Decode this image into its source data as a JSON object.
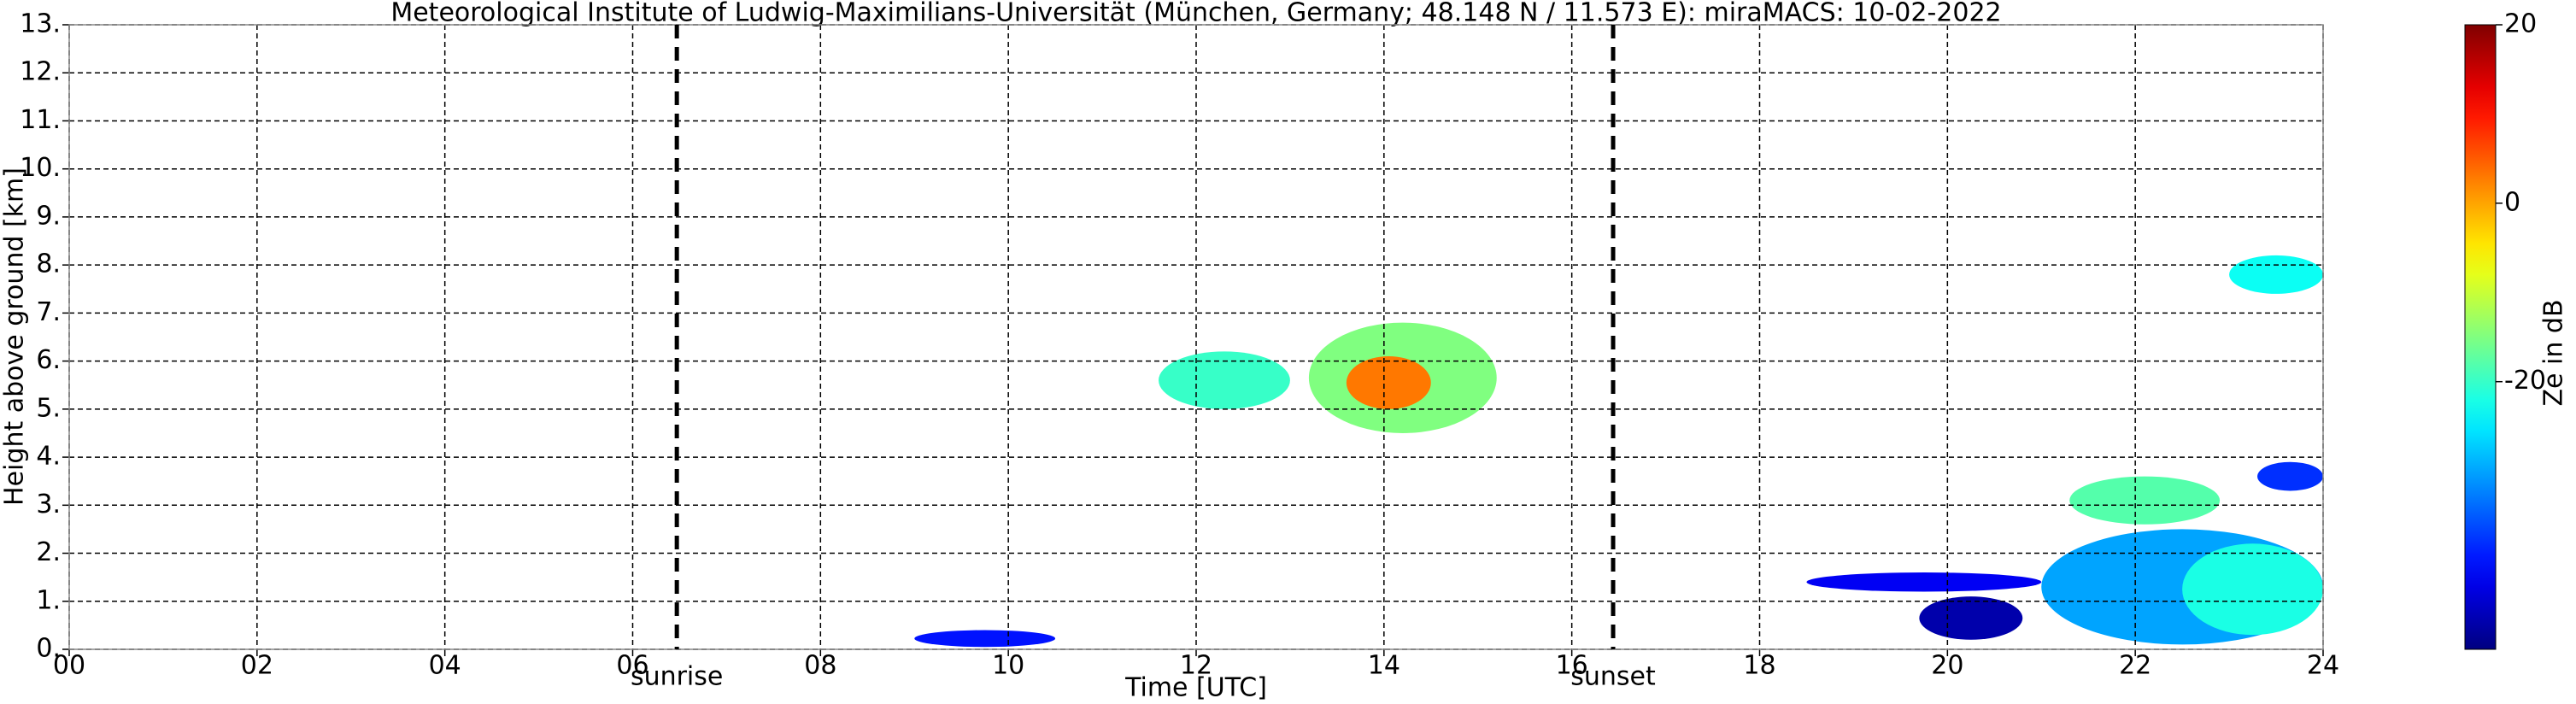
{
  "chart_data": {
    "type": "heatmap",
    "title": "Meteorological Institute of Ludwig-Maximilians-Universität (München, Germany; 48.148 N / 11.573 E):    miraMACS: 10-02-2022",
    "xlabel": "Time [UTC]",
    "ylabel": "Height above ground [km]",
    "colorbar_label": "Ze in dB",
    "colormap": "jet",
    "grid": true,
    "xlim": [
      0,
      24
    ],
    "xticks": [
      {
        "value": 0,
        "label": "00"
      },
      {
        "value": 2,
        "label": "02"
      },
      {
        "value": 4,
        "label": "04"
      },
      {
        "value": 6,
        "label": "06"
      },
      {
        "value": 8,
        "label": "08"
      },
      10,
      12,
      14,
      16,
      18,
      20,
      22,
      24
    ],
    "ylim": [
      0,
      13
    ],
    "yticks": [
      {
        "value": 0,
        "label": "0."
      },
      {
        "value": 1,
        "label": "1."
      },
      {
        "value": 2,
        "label": "2."
      },
      {
        "value": 3,
        "label": "3."
      },
      {
        "value": 4,
        "label": "4."
      },
      {
        "value": 5,
        "label": "5."
      },
      {
        "value": 6,
        "label": "6."
      },
      {
        "value": 7,
        "label": "7."
      },
      {
        "value": 8,
        "label": "8."
      },
      {
        "value": 9,
        "label": "9."
      },
      {
        "value": 10,
        "label": "10."
      },
      {
        "value": 11,
        "label": "11."
      },
      {
        "value": 12,
        "label": "12."
      },
      {
        "value": 13,
        "label": "13."
      }
    ],
    "clim": [
      -50,
      20
    ],
    "cticks": [
      20,
      0,
      -20
    ],
    "markers": [
      {
        "x": 6.47,
        "label": "sunrise"
      },
      {
        "x": 16.44,
        "label": "sunset"
      }
    ],
    "regions": [
      {
        "x": [
          11.6,
          13.0
        ],
        "y": [
          5.0,
          6.2
        ],
        "value": -20
      },
      {
        "x": [
          13.2,
          15.2
        ],
        "y": [
          4.5,
          6.8
        ],
        "value": -15
      },
      {
        "x": [
          13.6,
          14.5
        ],
        "y": [
          5.0,
          6.1
        ],
        "value": 3
      },
      {
        "x": [
          23.0,
          24.0
        ],
        "y": [
          7.4,
          8.2
        ],
        "value": -23
      },
      {
        "x": [
          21.3,
          22.9
        ],
        "y": [
          2.6,
          3.6
        ],
        "value": -18
      },
      {
        "x": [
          19.7,
          20.8
        ],
        "y": [
          0.2,
          1.1
        ],
        "value": -47
      },
      {
        "x": [
          21.0,
          24.0
        ],
        "y": [
          0.1,
          2.5
        ],
        "value": -30
      },
      {
        "x": [
          22.5,
          24.0
        ],
        "y": [
          0.3,
          2.2
        ],
        "value": -22
      },
      {
        "x": [
          9.0,
          10.5
        ],
        "y": [
          0.05,
          0.4
        ],
        "value": -40
      },
      {
        "x": [
          18.5,
          21.0
        ],
        "y": [
          1.2,
          1.6
        ],
        "value": -42
      },
      {
        "x": [
          23.3,
          24.0
        ],
        "y": [
          3.3,
          3.9
        ],
        "value": -38
      }
    ]
  }
}
